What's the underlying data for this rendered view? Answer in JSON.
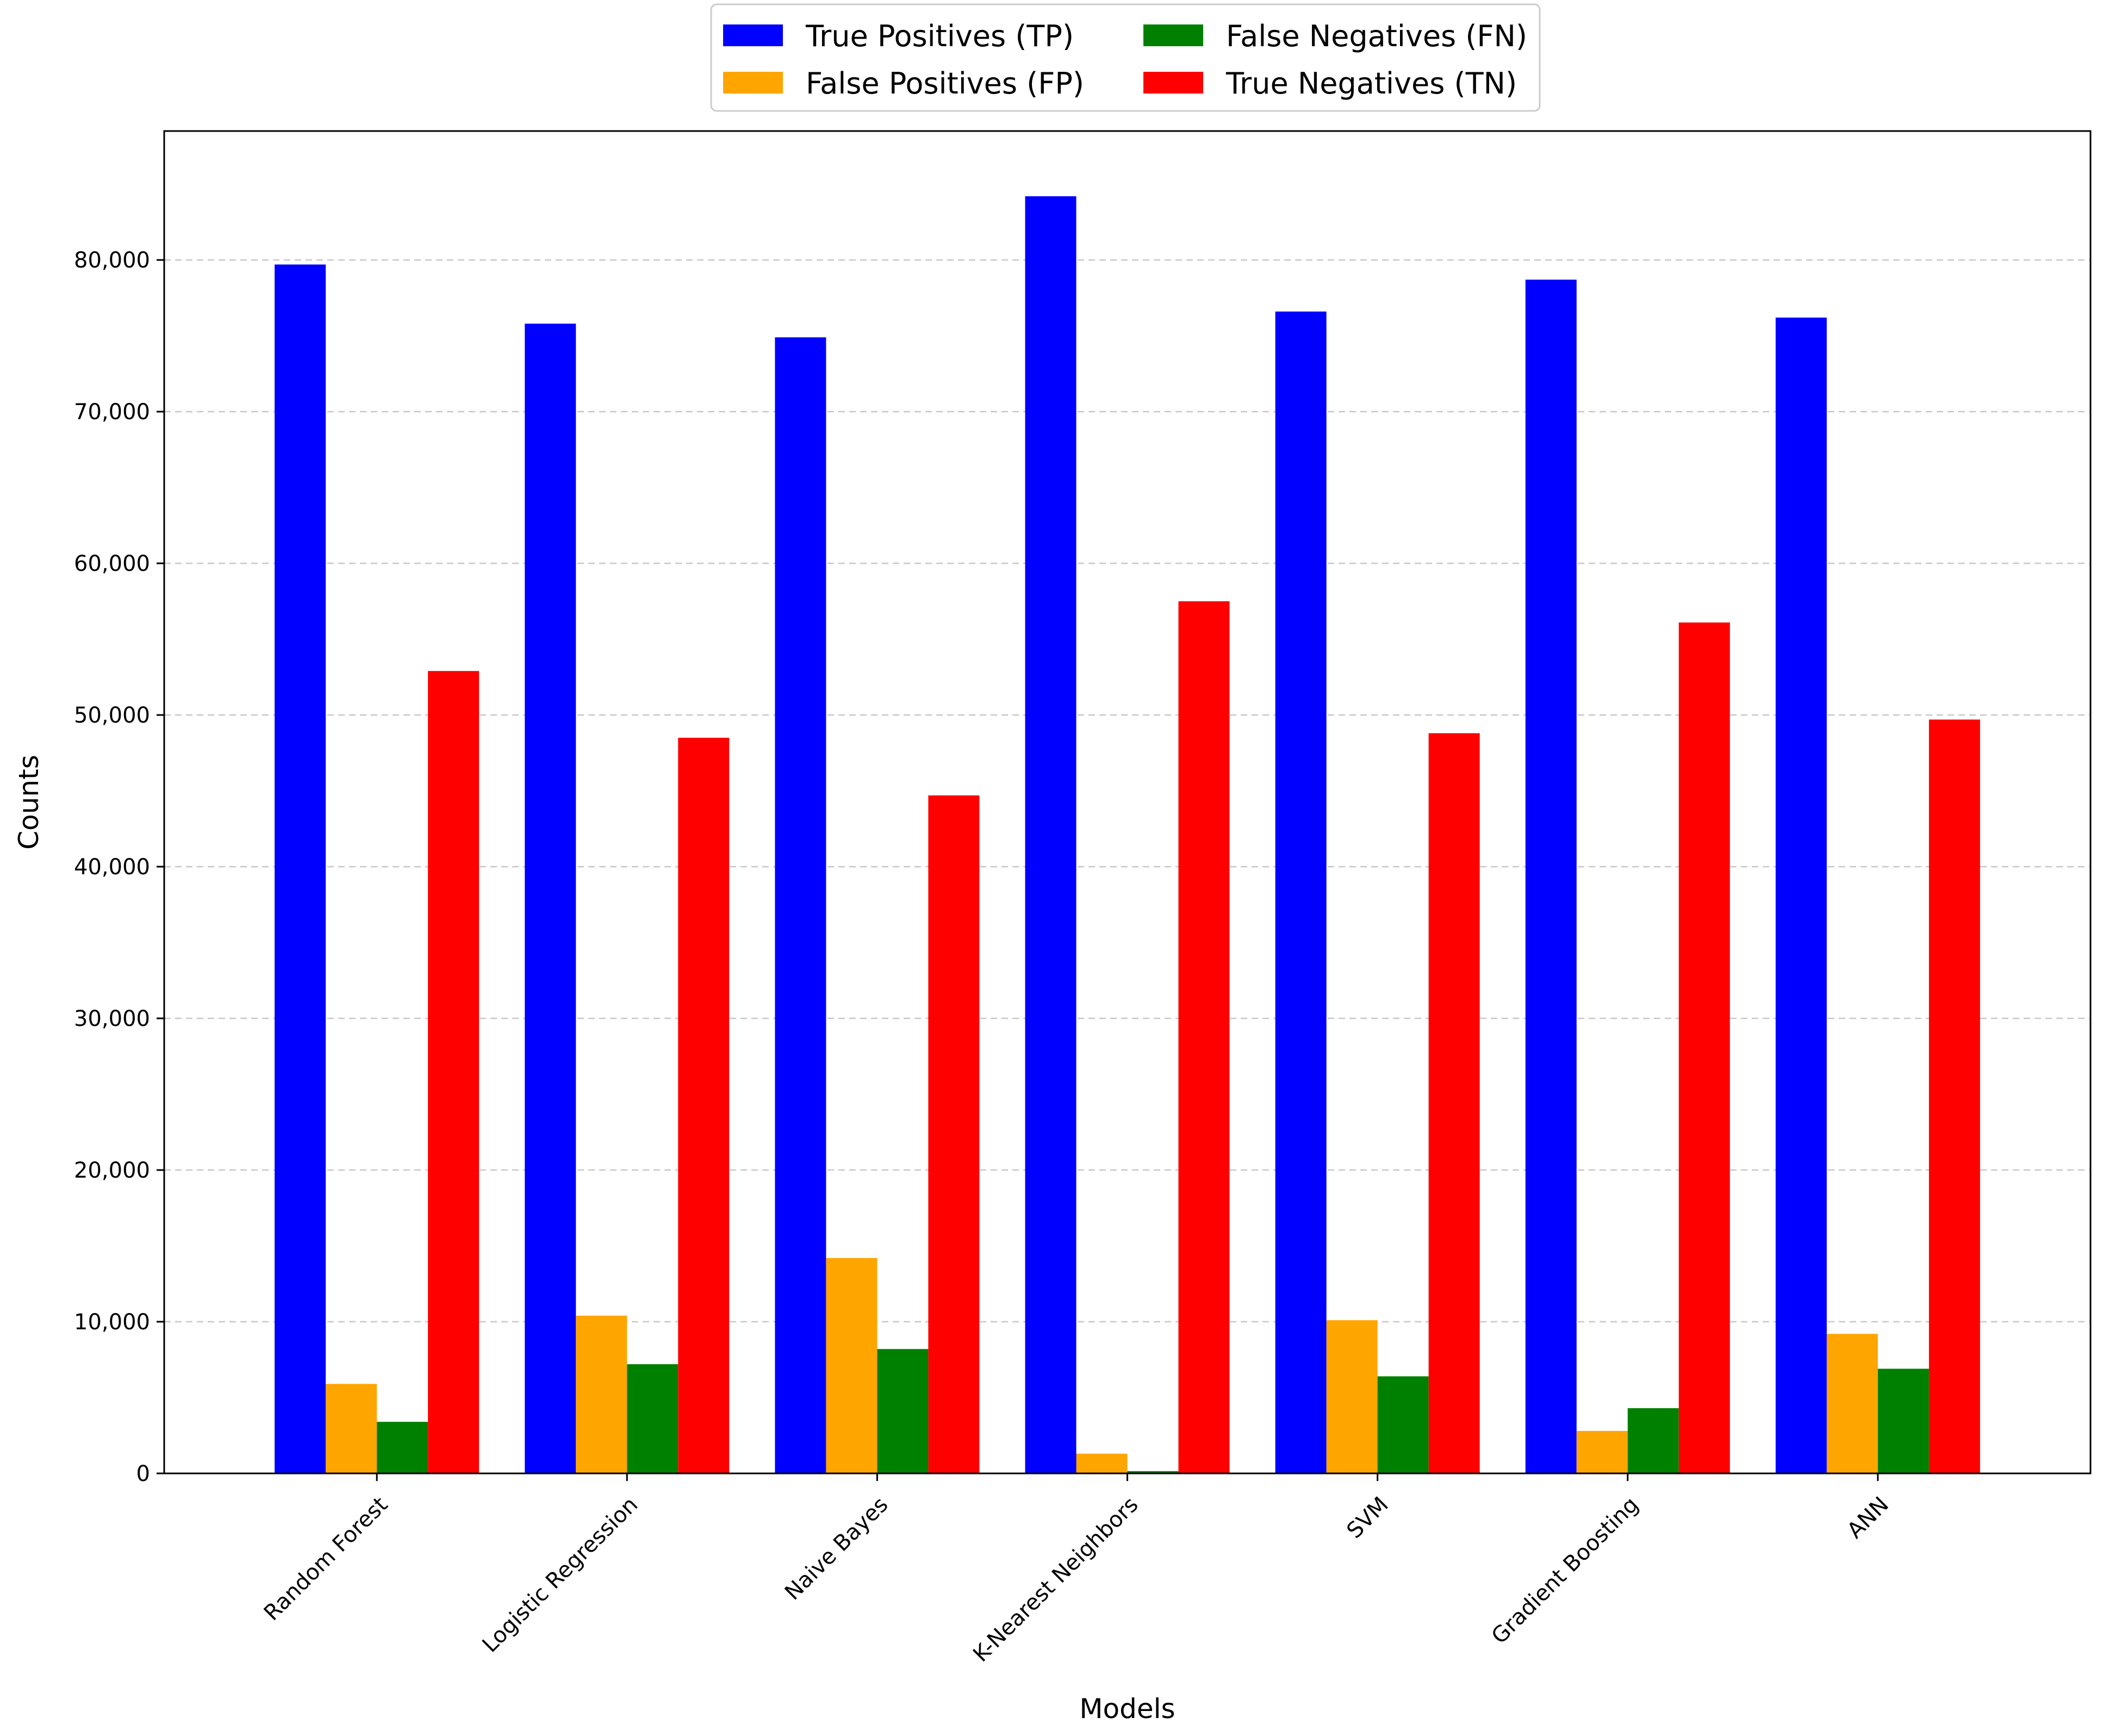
{
  "chart_data": {
    "type": "bar",
    "title": "",
    "xlabel": "Models",
    "ylabel": "Counts",
    "ylim": [
      0,
      88500
    ],
    "yticks": [
      0,
      10000,
      20000,
      30000,
      40000,
      50000,
      60000,
      70000,
      80000
    ],
    "ytick_labels": [
      "0",
      "10,000",
      "20,000",
      "30,000",
      "40,000",
      "50,000",
      "60,000",
      "70,000",
      "80,000"
    ],
    "grid": "horizontal dashed",
    "legend_position": "top-center",
    "categories": [
      "Random Forest",
      "Logistic Regression",
      "Naive Bayes",
      "K-Nearest Neighbors",
      "SVM",
      "Gradient Boosting",
      "ANN"
    ],
    "series": [
      {
        "name": "True Positives (TP)",
        "color": "#0000ff",
        "values": [
          79700,
          75800,
          74900,
          84200,
          76600,
          78700,
          76200
        ]
      },
      {
        "name": "False Positives (FP)",
        "color": "#ffa500",
        "values": [
          5900,
          10400,
          14200,
          1300,
          10100,
          2800,
          9200
        ]
      },
      {
        "name": "False Negatives (FN)",
        "color": "#008000",
        "values": [
          3400,
          7200,
          8200,
          150,
          6400,
          4300,
          6900
        ]
      },
      {
        "name": "True Negatives (TN)",
        "color": "#ff0000",
        "values": [
          52900,
          48500,
          44700,
          57500,
          48800,
          56100,
          49700
        ]
      }
    ]
  }
}
